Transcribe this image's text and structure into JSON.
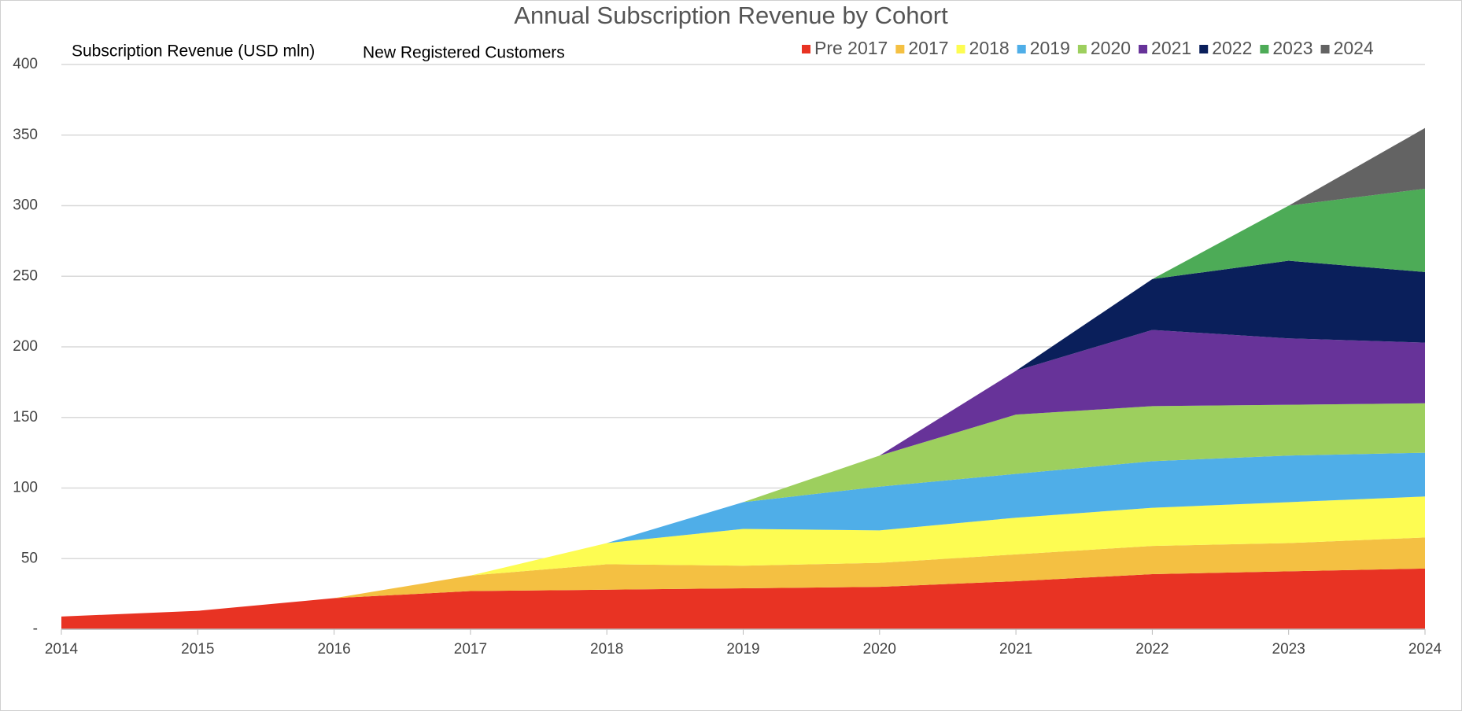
{
  "chart_data": {
    "type": "stacked_area",
    "title": "Annual Subscription Revenue by Cohort",
    "annotations": [
      "Subscription Revenue (USD mln)",
      "New Registered Customers"
    ],
    "categories": [
      "2014",
      "2015",
      "2016",
      "2017",
      "2018",
      "2019",
      "2020",
      "2021",
      "2022",
      "2023",
      "2024"
    ],
    "series": [
      {
        "name": "Pre 2017",
        "color": "#e83323",
        "values": [
          9,
          13,
          22,
          27,
          28,
          29,
          30,
          34,
          39,
          41,
          43
        ]
      },
      {
        "name": "2017",
        "color": "#f4c042",
        "values": [
          null,
          null,
          0,
          11,
          18,
          16,
          17,
          19,
          20,
          20,
          22
        ]
      },
      {
        "name": "2018",
        "color": "#fdfc52",
        "values": [
          null,
          null,
          null,
          0,
          15,
          26,
          23,
          26,
          27,
          29,
          29
        ]
      },
      {
        "name": "2019",
        "color": "#4faee8",
        "values": [
          null,
          null,
          null,
          null,
          0,
          19,
          31,
          31,
          33,
          33,
          31
        ]
      },
      {
        "name": "2020",
        "color": "#9dcf5e",
        "values": [
          null,
          null,
          null,
          null,
          null,
          0,
          22,
          42,
          39,
          36,
          35
        ]
      },
      {
        "name": "2021",
        "color": "#673399",
        "values": [
          null,
          null,
          null,
          null,
          null,
          null,
          0,
          31,
          54,
          47,
          43
        ]
      },
      {
        "name": "2022",
        "color": "#0a1f5b",
        "values": [
          null,
          null,
          null,
          null,
          null,
          null,
          null,
          0,
          36,
          55,
          50
        ]
      },
      {
        "name": "2023",
        "color": "#4dab57",
        "values": [
          null,
          null,
          null,
          null,
          null,
          null,
          null,
          null,
          0,
          39,
          59
        ]
      },
      {
        "name": "2024",
        "color": "#636363",
        "values": [
          null,
          null,
          null,
          null,
          null,
          null,
          null,
          null,
          null,
          0,
          43
        ]
      }
    ],
    "ylim": [
      0,
      400
    ],
    "yticks": [
      {
        "value": 0,
        "label": "-"
      },
      50,
      100,
      150,
      200,
      250,
      300,
      350,
      400
    ],
    "grid": true
  }
}
